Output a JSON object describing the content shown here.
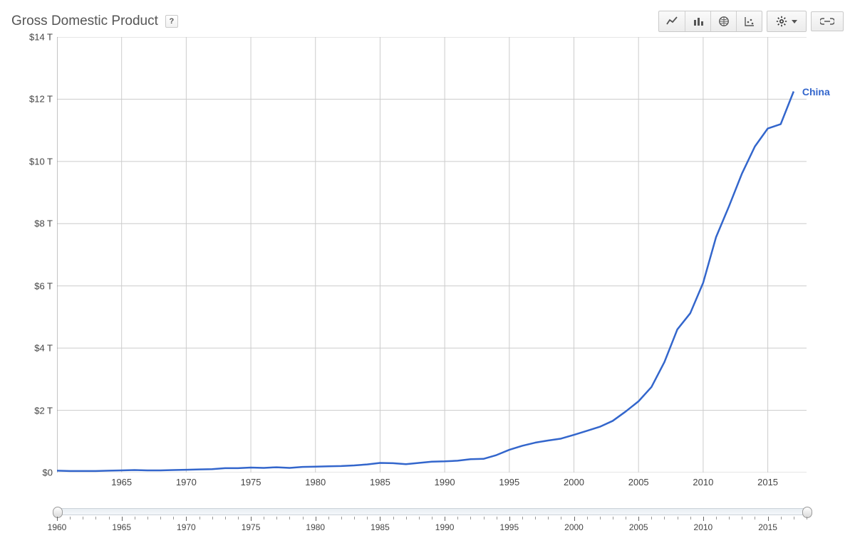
{
  "title": "Gross Domestic Product",
  "help_label": "?",
  "legend": {
    "label": "China",
    "color": "#3366cc"
  },
  "chart": {
    "type": "line",
    "series_name": "China",
    "xlabel_years": [
      1965,
      1970,
      1975,
      1980,
      1985,
      1990,
      1995,
      2000,
      2005,
      2010,
      2015
    ],
    "y_ticks": [
      0,
      2,
      4,
      6,
      8,
      10,
      12,
      14
    ],
    "y_tick_labels": [
      "$0",
      "$2 T",
      "$4 T",
      "$6 T",
      "$8 T",
      "$10 T",
      "$12 T",
      "$14 T"
    ],
    "xlim": [
      1960,
      2018
    ],
    "ylim": [
      0,
      14
    ],
    "line_color": "#3366cc",
    "line_width": 2.5,
    "grid_color": "#cccccc",
    "background_color": "#ffffff",
    "tick_fontsize": 13,
    "data": [
      {
        "year": 1960,
        "value": 0.06
      },
      {
        "year": 1961,
        "value": 0.05
      },
      {
        "year": 1962,
        "value": 0.05
      },
      {
        "year": 1963,
        "value": 0.05
      },
      {
        "year": 1964,
        "value": 0.06
      },
      {
        "year": 1965,
        "value": 0.07
      },
      {
        "year": 1966,
        "value": 0.08
      },
      {
        "year": 1967,
        "value": 0.07
      },
      {
        "year": 1968,
        "value": 0.07
      },
      {
        "year": 1969,
        "value": 0.08
      },
      {
        "year": 1970,
        "value": 0.09
      },
      {
        "year": 1971,
        "value": 0.1
      },
      {
        "year": 1972,
        "value": 0.11
      },
      {
        "year": 1973,
        "value": 0.14
      },
      {
        "year": 1974,
        "value": 0.14
      },
      {
        "year": 1975,
        "value": 0.16
      },
      {
        "year": 1976,
        "value": 0.15
      },
      {
        "year": 1977,
        "value": 0.17
      },
      {
        "year": 1978,
        "value": 0.15
      },
      {
        "year": 1979,
        "value": 0.18
      },
      {
        "year": 1980,
        "value": 0.19
      },
      {
        "year": 1981,
        "value": 0.2
      },
      {
        "year": 1982,
        "value": 0.21
      },
      {
        "year": 1983,
        "value": 0.23
      },
      {
        "year": 1984,
        "value": 0.26
      },
      {
        "year": 1985,
        "value": 0.31
      },
      {
        "year": 1986,
        "value": 0.3
      },
      {
        "year": 1987,
        "value": 0.27
      },
      {
        "year": 1988,
        "value": 0.31
      },
      {
        "year": 1989,
        "value": 0.35
      },
      {
        "year": 1990,
        "value": 0.36
      },
      {
        "year": 1991,
        "value": 0.38
      },
      {
        "year": 1992,
        "value": 0.43
      },
      {
        "year": 1993,
        "value": 0.44
      },
      {
        "year": 1994,
        "value": 0.56
      },
      {
        "year": 1995,
        "value": 0.73
      },
      {
        "year": 1996,
        "value": 0.86
      },
      {
        "year": 1997,
        "value": 0.96
      },
      {
        "year": 1998,
        "value": 1.03
      },
      {
        "year": 1999,
        "value": 1.09
      },
      {
        "year": 2000,
        "value": 1.21
      },
      {
        "year": 2001,
        "value": 1.34
      },
      {
        "year": 2002,
        "value": 1.47
      },
      {
        "year": 2003,
        "value": 1.66
      },
      {
        "year": 2004,
        "value": 1.96
      },
      {
        "year": 2005,
        "value": 2.29
      },
      {
        "year": 2006,
        "value": 2.75
      },
      {
        "year": 2007,
        "value": 3.55
      },
      {
        "year": 2008,
        "value": 4.6
      },
      {
        "year": 2009,
        "value": 5.12
      },
      {
        "year": 2010,
        "value": 6.1
      },
      {
        "year": 2011,
        "value": 7.57
      },
      {
        "year": 2012,
        "value": 8.56
      },
      {
        "year": 2013,
        "value": 9.61
      },
      {
        "year": 2014,
        "value": 10.48
      },
      {
        "year": 2015,
        "value": 11.06
      },
      {
        "year": 2016,
        "value": 11.2
      },
      {
        "year": 2017,
        "value": 12.25
      }
    ]
  },
  "range_selector": {
    "major_years": [
      1960,
      1965,
      1970,
      1975,
      1980,
      1985,
      1990,
      1995,
      2000,
      2005,
      2010,
      2015
    ],
    "xlim": [
      1960,
      2018
    ],
    "handle_left_year": 1960,
    "handle_right_year": 2018
  }
}
